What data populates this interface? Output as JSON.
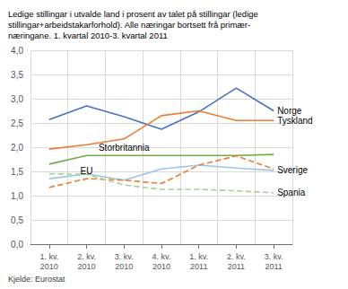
{
  "chart_data": {
    "type": "line",
    "title": "Ledige stillingar i utvalde land i prosent av talet på stillingar (ledige\nstillingar+arbeidstakarforhold). Alle næringar bortsett frå primær-\nnæringane. 1. kvartal 2010-3. kvartal 2011",
    "source": "Kjelde: Eurostat",
    "categories": [
      "1. kv.\n2010",
      "2. kv.\n2010",
      "3. kv.\n2010",
      "4. kv.\n2010",
      "1. kv.\n2011",
      "2. kv.\n2011",
      "3. kv.\n2011"
    ],
    "series": [
      {
        "name": "Norge",
        "color": "#4472C4",
        "line_style": "solid",
        "values": [
          2.57,
          2.85,
          2.63,
          2.37,
          2.73,
          3.22,
          2.75
        ]
      },
      {
        "name": "Tyskland",
        "color": "#ED7D31",
        "line_style": "solid",
        "values": [
          1.96,
          2.05,
          2.17,
          2.65,
          2.75,
          2.55,
          2.55
        ]
      },
      {
        "name": "Storbritannia",
        "color": "#70AD47",
        "line_style": "solid",
        "values": [
          1.65,
          1.83,
          1.83,
          1.83,
          1.83,
          1.83,
          1.85
        ]
      },
      {
        "name": "Sverige",
        "color": "#9DC3E6",
        "line_style": "solid",
        "values": [
          1.35,
          1.45,
          1.32,
          1.55,
          1.63,
          1.57,
          1.52
        ]
      },
      {
        "name": "EU",
        "color": "#ED7D31",
        "line_style": "dashed",
        "values": [
          1.17,
          1.35,
          1.32,
          1.25,
          1.63,
          1.82,
          1.55
        ]
      },
      {
        "name": "Spania",
        "color": "#A9D18E",
        "line_style": "dashed",
        "values": [
          1.45,
          1.44,
          1.22,
          1.13,
          1.13,
          1.1,
          1.06
        ]
      }
    ],
    "annotations": [
      {
        "text": "Norge",
        "series": "Norge",
        "category": "3. kv.\n2011"
      },
      {
        "text": "Tyskland",
        "series": "Tyskland",
        "category": "3. kv.\n2011"
      },
      {
        "text": "Sverige",
        "series": "Sverige",
        "category": "3. kv.\n2011"
      },
      {
        "text": "Spania",
        "series": "Spania",
        "category": "3. kv.\n2011"
      },
      {
        "text": "Storbritannia",
        "series": "Storbritannia",
        "category": "3. kv.\n2010"
      },
      {
        "text": "EU",
        "series": "EU",
        "category": "2. kv.\n2010"
      }
    ],
    "ylim": [
      0.0,
      4.0
    ],
    "yticks": [
      {
        "value": 0.0,
        "label": "0,0"
      },
      {
        "value": 0.5,
        "label": "0,5"
      },
      {
        "value": 1.0,
        "label": "1,0"
      },
      {
        "value": 1.5,
        "label": "1,5"
      },
      {
        "value": 2.0,
        "label": "2,0"
      },
      {
        "value": 2.5,
        "label": "2,5"
      },
      {
        "value": 3.0,
        "label": "3,0"
      },
      {
        "value": 3.5,
        "label": "3,5"
      },
      {
        "value": 4.0,
        "label": "4,0"
      }
    ],
    "grid": true
  }
}
